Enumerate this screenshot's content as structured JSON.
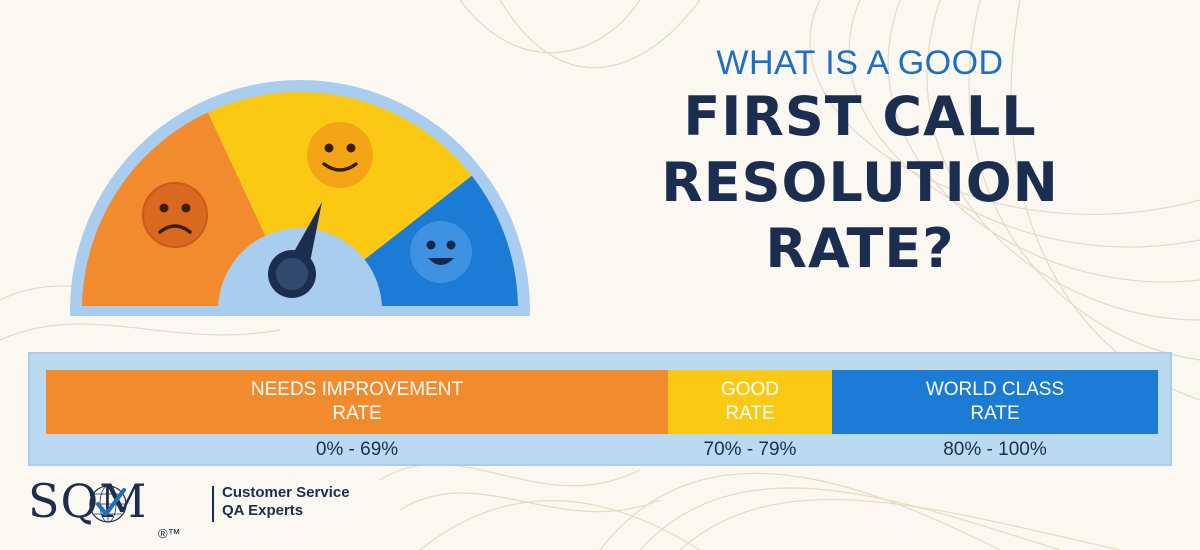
{
  "headline": {
    "sub": "WHAT IS A GOOD",
    "line1": "FIRST CALL",
    "line2": "RESOLUTION",
    "line3": "RATE?"
  },
  "scale": {
    "segments": [
      {
        "label_line1": "NEEDS IMPROVEMENT",
        "label_line2": "RATE",
        "range": "0% - 69%",
        "color": "#f28a2e"
      },
      {
        "label_line1": "GOOD",
        "label_line2": "RATE",
        "range": "70% - 79%",
        "color": "#fbc913"
      },
      {
        "label_line1": "WORLD CLASS",
        "label_line2": "RATE",
        "range": "80% - 100%",
        "color": "#1b7bd5"
      }
    ]
  },
  "gauge": {
    "zones": [
      {
        "face": "sad-face-icon",
        "color": "#f28a2e"
      },
      {
        "face": "smile-face-icon",
        "color": "#fbc913"
      },
      {
        "face": "happy-face-icon",
        "color": "#1b7bd5"
      }
    ],
    "needle_icon": "gauge-needle-icon",
    "rim_color": "#a9cdee"
  },
  "logo": {
    "letters": "SQM",
    "tagline_line1": "Customer Service",
    "tagline_line2": "QA Experts",
    "trademark": "®™"
  },
  "colors": {
    "navy": "#1c2e4f",
    "blue": "#1e6fc2",
    "orange": "#f28a2e",
    "yellow": "#fbc913",
    "world_blue": "#1b7bd5"
  }
}
